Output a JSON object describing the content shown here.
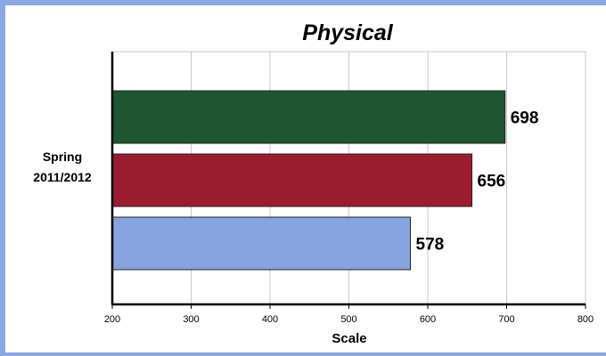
{
  "chart_data": {
    "type": "bar",
    "orientation": "horizontal",
    "title": "Physical",
    "xlabel": "Scale",
    "ylabel": "",
    "category_label_lines": [
      "Spring",
      "2011/2012"
    ],
    "xlim": [
      200,
      800
    ],
    "x_ticks": [
      200,
      300,
      400,
      500,
      600,
      700,
      800
    ],
    "grid": true,
    "legend": "none",
    "series": [
      {
        "values": [
          698
        ],
        "color": "#1e5631",
        "data_label": "698"
      },
      {
        "values": [
          656
        ],
        "color": "#9b1c2e",
        "data_label": "656"
      },
      {
        "values": [
          578
        ],
        "color": "#87a3e0",
        "data_label": "578"
      }
    ]
  },
  "colors": {
    "frame": "#8aa7e0",
    "grid": "#c8c8c8",
    "axis": "#000000"
  }
}
